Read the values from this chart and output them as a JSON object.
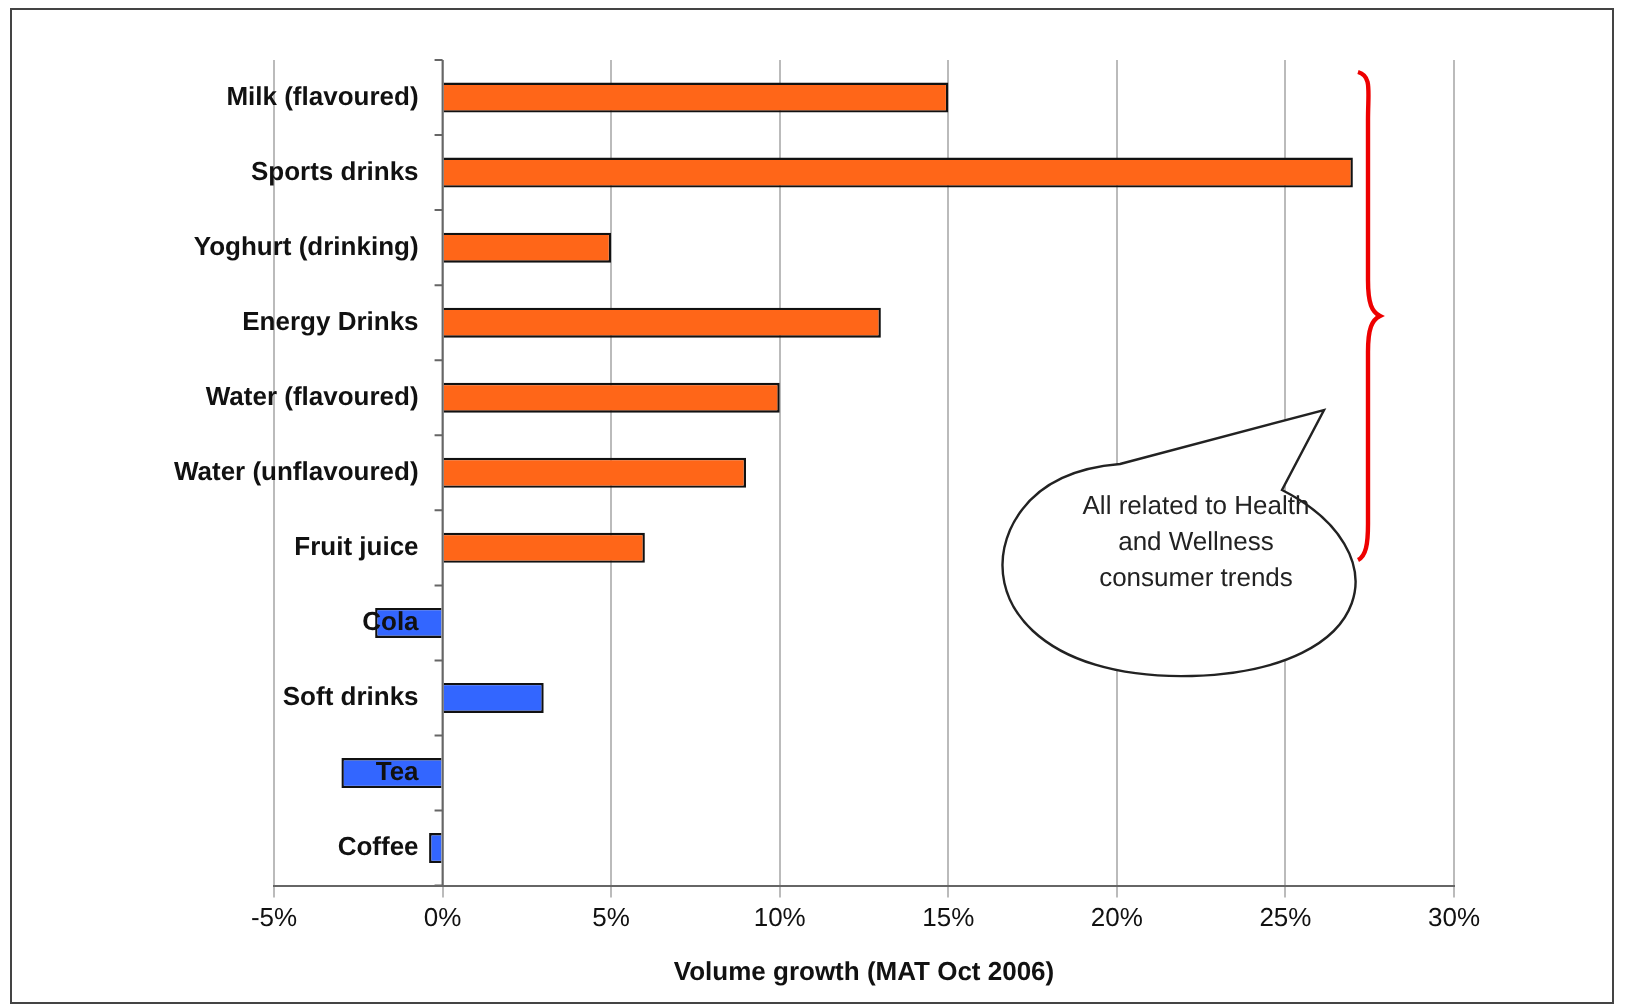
{
  "chart_data": {
    "type": "bar",
    "orientation": "horizontal",
    "xlabel": "Volume growth (MAT Oct 2006)",
    "categories": [
      "Milk (flavoured)",
      "Sports drinks",
      "Yoghurt (drinking)",
      "Energy Drinks",
      "Water (flavoured)",
      "Water (unflavoured)",
      "Fruit juice",
      "Cola",
      "Soft drinks",
      "Tea",
      "Coffee"
    ],
    "values": [
      15,
      27,
      5,
      13,
      10,
      9,
      6,
      -2,
      3,
      -3,
      -0.4
    ],
    "colors": [
      "#ff6618",
      "#ff6618",
      "#ff6618",
      "#ff6618",
      "#ff6618",
      "#ff6618",
      "#ff6618",
      "#3366ff",
      "#3366ff",
      "#3366ff",
      "#3366ff"
    ],
    "xlim": [
      -5,
      30
    ],
    "xticks": [
      {
        "value": -5,
        "label": "-5%"
      },
      {
        "value": 0,
        "label": "0%"
      },
      {
        "value": 5,
        "label": "5%"
      },
      {
        "value": 10,
        "label": "10%"
      },
      {
        "value": 15,
        "label": "15%"
      },
      {
        "value": 20,
        "label": "20%"
      },
      {
        "value": 25,
        "label": "25%"
      },
      {
        "value": 30,
        "label": "30%"
      }
    ],
    "grid": "x",
    "legend": false,
    "annotations": [
      "All related to Health and Wellness consumer trends"
    ]
  }
}
